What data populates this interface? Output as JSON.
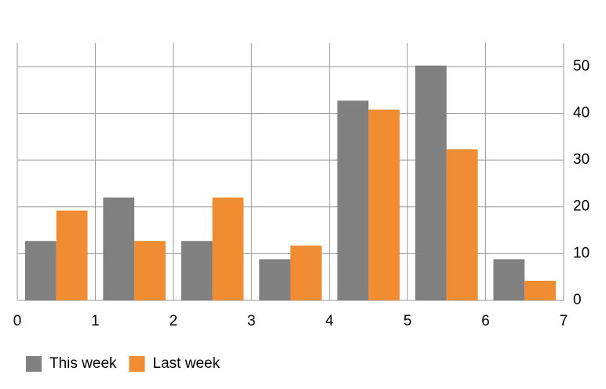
{
  "chart_data": {
    "type": "bar",
    "x": [
      0.5,
      1.5,
      2.5,
      3.5,
      4.5,
      5.5,
      6.5
    ],
    "series": [
      {
        "name": "This week",
        "color": "#808080",
        "values": [
          12.7,
          22,
          12.7,
          8.8,
          42.7,
          50.2,
          8.8
        ]
      },
      {
        "name": "Last week",
        "color": "#f08c32",
        "values": [
          19.2,
          12.7,
          22,
          11.7,
          40.8,
          32.3,
          4.2
        ]
      }
    ],
    "xlim": [
      0,
      7
    ],
    "xticks": [
      0,
      1,
      2,
      3,
      4,
      5,
      6,
      7
    ],
    "ylim": [
      0,
      55
    ],
    "yticks": [
      0,
      10,
      20,
      30,
      40,
      50
    ],
    "grid": true,
    "legend": "bottom-left"
  }
}
